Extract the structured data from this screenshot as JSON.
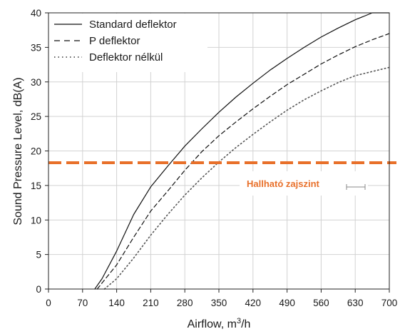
{
  "chart_data": {
    "type": "line",
    "title": "",
    "xlabel": "Airflow, m",
    "xlabel_sup": "3",
    "xlabel_tail": "/h",
    "ylabel": "Sound Pressure Level, dB(A)",
    "xlim": [
      0,
      700
    ],
    "ylim": [
      0,
      40
    ],
    "x_ticks": [
      0,
      70,
      140,
      210,
      280,
      350,
      420,
      490,
      560,
      630,
      700
    ],
    "y_ticks": [
      0,
      5,
      10,
      15,
      20,
      25,
      30,
      35,
      40
    ],
    "grid": true,
    "legend_position": "top-left",
    "series": [
      {
        "name": "Standard deflektor",
        "style": "solid",
        "color": "#111111",
        "x": [
          95,
          110,
          140,
          175,
          210,
          245,
          280,
          315,
          350,
          385,
          420,
          455,
          490,
          525,
          560,
          595,
          630,
          665,
          700
        ],
        "y": [
          0,
          1.5,
          5.5,
          10.8,
          14.8,
          17.8,
          20.7,
          23.2,
          25.6,
          27.8,
          29.8,
          31.7,
          33.4,
          35,
          36.5,
          37.8,
          39,
          40,
          40.8
        ]
      },
      {
        "name": "P deflektor",
        "style": "dashed",
        "color": "#111111",
        "x": [
          100,
          140,
          175,
          210,
          245,
          280,
          315,
          350,
          385,
          420,
          455,
          490,
          525,
          560,
          595,
          630,
          665,
          700
        ],
        "y": [
          0,
          3.5,
          7.5,
          11.3,
          14.2,
          17.2,
          19.9,
          22.2,
          24.2,
          26.1,
          27.9,
          29.6,
          31.1,
          32.6,
          33.9,
          35.1,
          36.1,
          37
        ]
      },
      {
        "name": "Deflektor nélkül",
        "style": "dotted",
        "color": "#555555",
        "x": [
          115,
          140,
          175,
          210,
          245,
          280,
          315,
          350,
          385,
          420,
          455,
          490,
          525,
          560,
          595,
          630,
          665,
          700
        ],
        "y": [
          0,
          1.5,
          4.5,
          7.8,
          10.8,
          13.6,
          16.1,
          18.4,
          20.5,
          22.4,
          24.2,
          25.9,
          27.4,
          28.7,
          29.9,
          30.9,
          31.5,
          32.1
        ]
      }
    ],
    "reference_line": {
      "y": 18.3,
      "color": "#e8702a",
      "label": "Hallható zajszint"
    }
  }
}
